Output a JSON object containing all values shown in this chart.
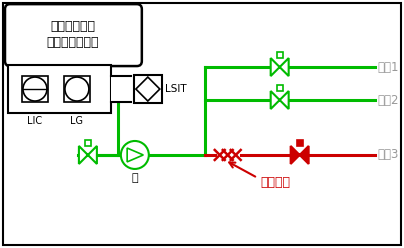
{
  "bg_color": "#ffffff",
  "border_color": "#000000",
  "green": "#00bb00",
  "red": "#cc0000",
  "gray": "#999999",
  "lw": 2.2,
  "title_line1": "碳氢化合物回",
  "title_line2": "收装置塔冷凝罐",
  "unit1": "单元1",
  "unit2": "单元2",
  "unit3": "单元3",
  "leak_label": "泄漏位置",
  "pump_label": "泵",
  "lic_label": "LIC",
  "lg_label": "LG",
  "lsit_label": "LSIT"
}
